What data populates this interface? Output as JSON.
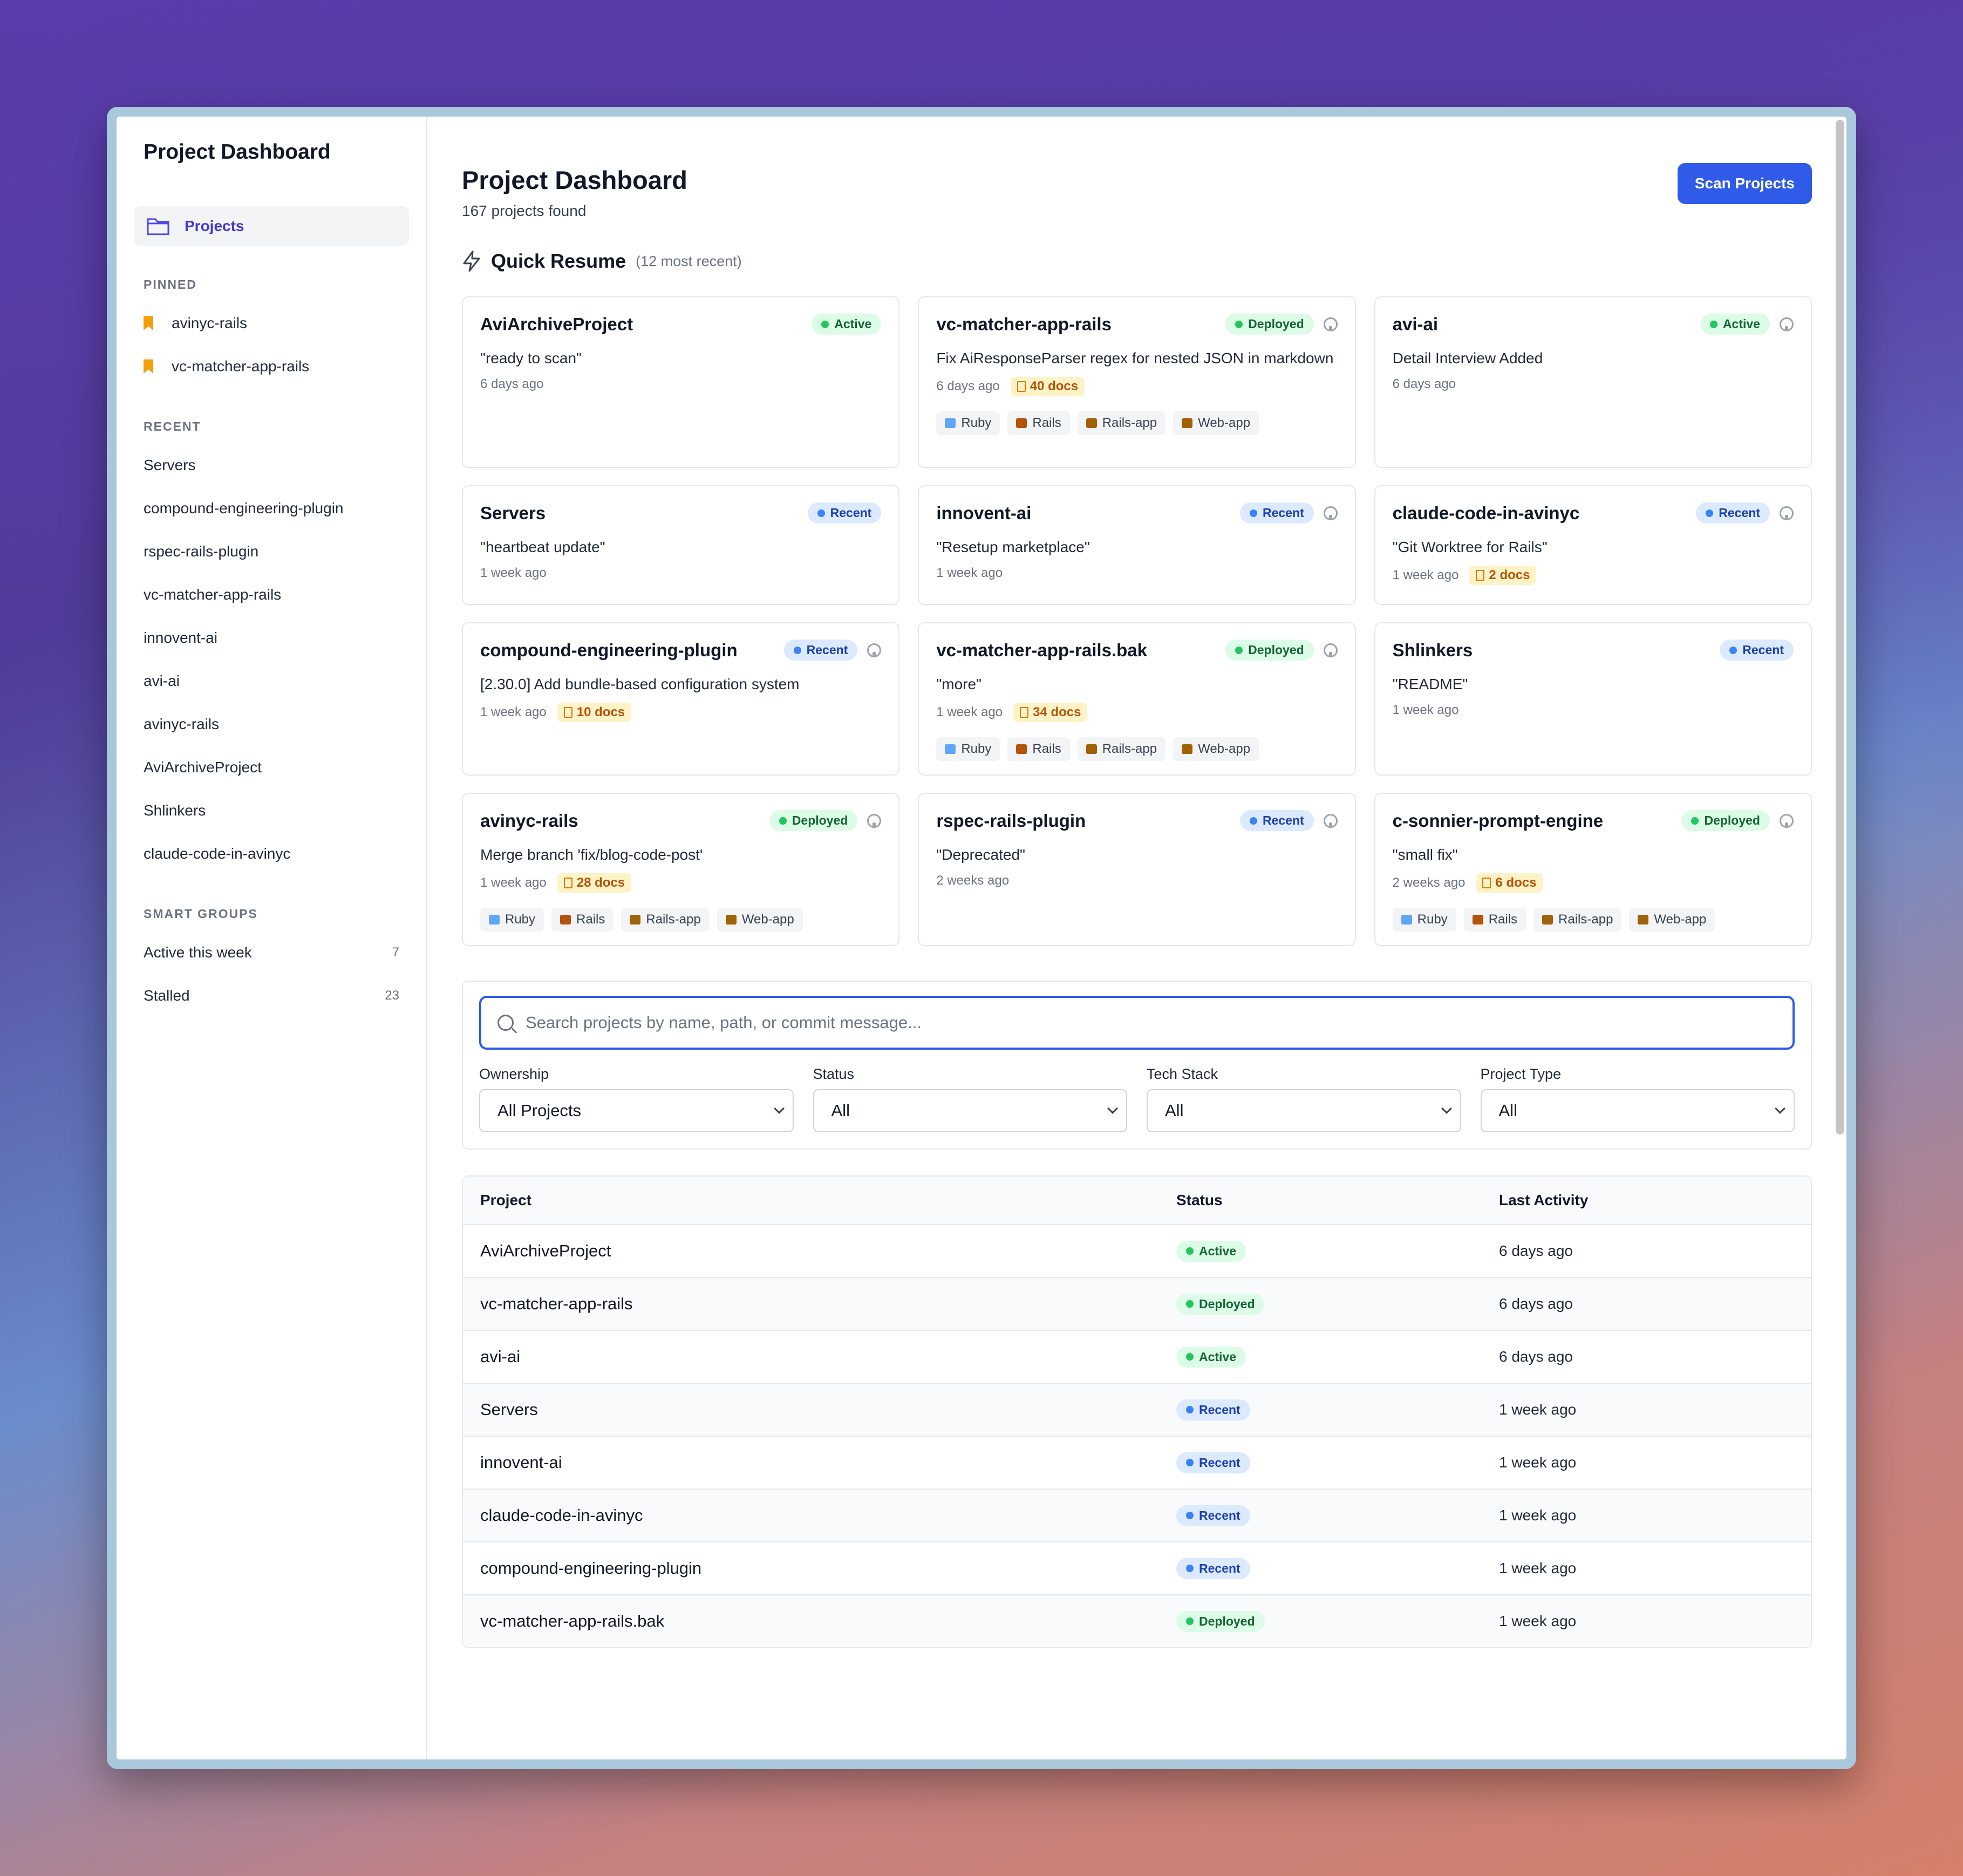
{
  "sidebar": {
    "title": "Project Dashboard",
    "nav_projects": "Projects",
    "pinned_label": "PINNED",
    "pinned": [
      "avinyc-rails",
      "vc-matcher-app-rails"
    ],
    "recent_label": "RECENT",
    "recent": [
      "Servers",
      "compound-engineering-plugin",
      "rspec-rails-plugin",
      "vc-matcher-app-rails",
      "innovent-ai",
      "avi-ai",
      "avinyc-rails",
      "AviArchiveProject",
      "Shlinkers",
      "claude-code-in-avinyc"
    ],
    "smart_label": "SMART GROUPS",
    "smart": [
      {
        "label": "Active this week",
        "count": "7"
      },
      {
        "label": "Stalled",
        "count": "23"
      }
    ]
  },
  "header": {
    "title": "Project Dashboard",
    "subtitle": "167 projects found",
    "scan_button": "Scan Projects"
  },
  "quick_resume": {
    "title": "Quick Resume",
    "subtitle": "(12 most recent)",
    "cards": [
      {
        "name": "AviArchiveProject",
        "status": "Active",
        "msg": "\"ready to scan\"",
        "time": "6 days ago"
      },
      {
        "name": "vc-matcher-app-rails",
        "status": "Deployed",
        "msg": "Fix AiResponseParser regex for nested JSON in markdown",
        "time": "6 days ago",
        "docs": "40 docs",
        "tags": [
          "Ruby",
          "Rails",
          "Rails-app",
          "Web-app"
        ]
      },
      {
        "name": "avi-ai",
        "status": "Active",
        "msg": "Detail Interview Added",
        "time": "6 days ago"
      },
      {
        "name": "Servers",
        "status": "Recent",
        "msg": "\"heartbeat update\"",
        "time": "1 week ago"
      },
      {
        "name": "innovent-ai",
        "status": "Recent",
        "msg": "\"Resetup marketplace\"",
        "time": "1 week ago"
      },
      {
        "name": "claude-code-in-avinyc",
        "status": "Recent",
        "msg": "\"Git Worktree for Rails\"",
        "time": "1 week ago",
        "docs": "2 docs"
      },
      {
        "name": "compound-engineering-plugin",
        "status": "Recent",
        "msg": "[2.30.0] Add bundle-based configuration system",
        "time": "1 week ago",
        "docs": "10 docs"
      },
      {
        "name": "vc-matcher-app-rails.bak",
        "status": "Deployed",
        "msg": "\"more\"",
        "time": "1 week ago",
        "docs": "34 docs",
        "tags": [
          "Ruby",
          "Rails",
          "Rails-app",
          "Web-app"
        ]
      },
      {
        "name": "Shlinkers",
        "status": "Recent",
        "msg": "\"README\"",
        "time": "1 week ago"
      },
      {
        "name": "avinyc-rails",
        "status": "Deployed",
        "msg": "Merge branch 'fix/blog-code-post'",
        "time": "1 week ago",
        "docs": "28 docs",
        "tags": [
          "Ruby",
          "Rails",
          "Rails-app",
          "Web-app"
        ]
      },
      {
        "name": "rspec-rails-plugin",
        "status": "Recent",
        "msg": "\"Deprecated\"",
        "time": "2 weeks ago"
      },
      {
        "name": "c-sonnier-prompt-engine",
        "status": "Deployed",
        "msg": "\"small fix\"",
        "time": "2 weeks ago",
        "docs": "6 docs",
        "tags": [
          "Ruby",
          "Rails",
          "Rails-app",
          "Web-app"
        ]
      }
    ]
  },
  "search": {
    "placeholder": "Search projects by name, path, or commit message...",
    "filters": [
      {
        "label": "Ownership",
        "value": "All Projects"
      },
      {
        "label": "Status",
        "value": "All"
      },
      {
        "label": "Tech Stack",
        "value": "All"
      },
      {
        "label": "Project Type",
        "value": "All"
      }
    ]
  },
  "table": {
    "headers": [
      "Project",
      "Status",
      "Last Activity"
    ],
    "rows": [
      {
        "name": "AviArchiveProject",
        "status": "Active",
        "time": "6 days ago"
      },
      {
        "name": "vc-matcher-app-rails",
        "status": "Deployed",
        "time": "6 days ago"
      },
      {
        "name": "avi-ai",
        "status": "Active",
        "time": "6 days ago"
      },
      {
        "name": "Servers",
        "status": "Recent",
        "time": "1 week ago"
      },
      {
        "name": "innovent-ai",
        "status": "Recent",
        "time": "1 week ago"
      },
      {
        "name": "claude-code-in-avinyc",
        "status": "Recent",
        "time": "1 week ago"
      },
      {
        "name": "compound-engineering-plugin",
        "status": "Recent",
        "time": "1 week ago"
      },
      {
        "name": "vc-matcher-app-rails.bak",
        "status": "Deployed",
        "time": "1 week ago"
      }
    ]
  },
  "colors": {
    "primary": "#2f5be8",
    "active_green": "#22c55e",
    "recent_blue": "#3b82f6",
    "pin": "#f59e0b"
  }
}
